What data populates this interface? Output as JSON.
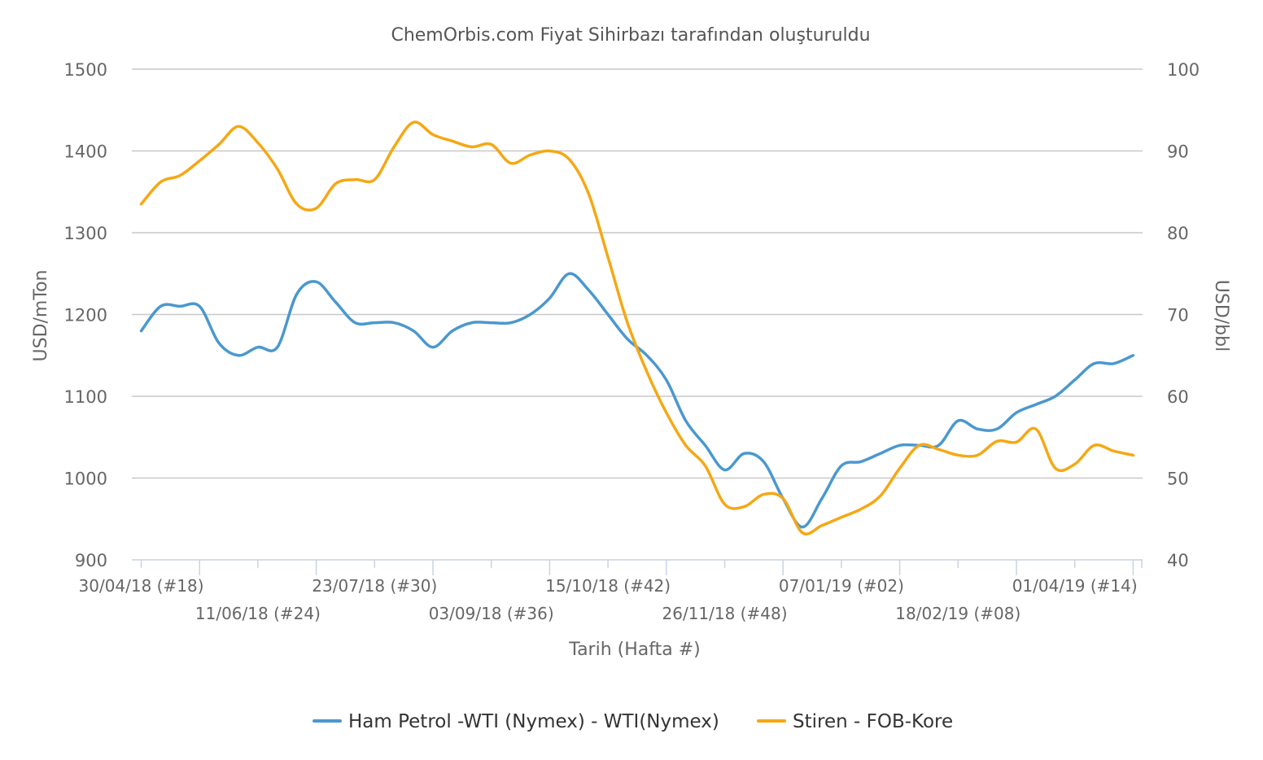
{
  "chart_data": {
    "type": "line",
    "title": "ChemOrbis.com Fiyat Sihirbazı tarafından oluşturuldu",
    "xlabel": "Tarih (Hafta #)",
    "ylabel": "USD/mTon",
    "y2label": "USD/bbl",
    "ylim": [
      900,
      1500
    ],
    "y2lim": [
      40,
      100
    ],
    "yticks": [
      "900",
      "1000",
      "1100",
      "1200",
      "1300",
      "1400",
      "1500"
    ],
    "y2ticks": [
      "40",
      "50",
      "60",
      "70",
      "80",
      "90",
      "100"
    ],
    "x_tick_labels": [
      {
        "week": 0,
        "label": "30/04/18 (#18)"
      },
      {
        "week": 6,
        "label": "11/06/18 (#24)"
      },
      {
        "week": 12,
        "label": "23/07/18 (#30)"
      },
      {
        "week": 18,
        "label": "03/09/18 (#36)"
      },
      {
        "week": 24,
        "label": "15/10/18 (#42)"
      },
      {
        "week": 30,
        "label": "26/11/18 (#48)"
      },
      {
        "week": 36,
        "label": "07/01/19 (#02)"
      },
      {
        "week": 42,
        "label": "18/02/19 (#08)"
      },
      {
        "week": 48,
        "label": "01/04/19 (#14)"
      }
    ],
    "grid": true,
    "legend": "bottom",
    "series": [
      {
        "name": "Ham Petrol -WTI (Nymex) - WTI(Nymex)",
        "color": "#4a98cf",
        "axis": "right",
        "unit": "USD/bbl",
        "values": [
          68,
          71,
          71,
          71,
          66.5,
          65,
          66,
          66,
          72.5,
          74,
          71.5,
          69,
          69,
          69,
          68,
          66,
          68,
          69,
          69,
          69,
          70,
          72,
          75,
          73,
          70,
          67,
          65,
          62,
          57,
          54,
          51,
          53,
          52,
          47.5,
          44,
          47.5,
          51.5,
          52,
          53,
          54,
          54,
          54,
          57,
          56,
          56,
          58,
          59,
          60,
          62,
          64,
          64,
          65
        ]
      },
      {
        "name": "Stiren - FOB-Kore",
        "color": "#f5a814",
        "axis": "left",
        "unit": "USD/mTon",
        "values": [
          1335,
          1362,
          1370,
          1388,
          1408,
          1430,
          1410,
          1378,
          1335,
          1330,
          1360,
          1365,
          1365,
          1405,
          1435,
          1420,
          1412,
          1405,
          1408,
          1385,
          1395,
          1400,
          1390,
          1348,
          1270,
          1190,
          1130,
          1080,
          1040,
          1015,
          968,
          965,
          980,
          975,
          933,
          942,
          952,
          962,
          978,
          1012,
          1040,
          1035,
          1028,
          1028,
          1045,
          1044,
          1060,
          1012,
          1017,
          1040,
          1033,
          1028
        ]
      }
    ]
  }
}
